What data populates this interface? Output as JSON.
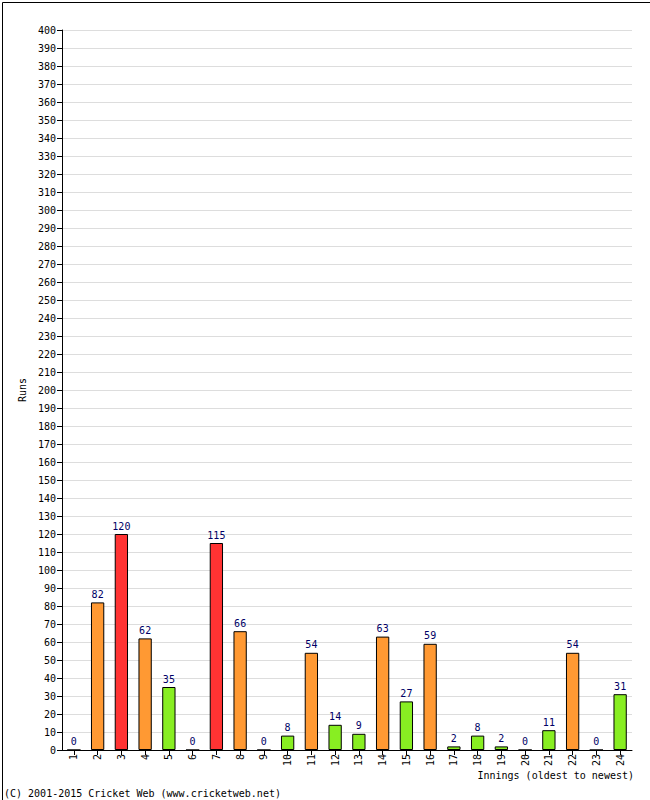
{
  "chart_data": {
    "type": "bar",
    "x_label": "Innings (oldest to newest)",
    "y_label": "Runs",
    "annotations": [
      "(C) 2001-2015 Cricket Web (www.cricketweb.net)"
    ],
    "categories": [
      "1",
      "2",
      "3",
      "4",
      "5",
      "6",
      "7",
      "8",
      "9",
      "10",
      "11",
      "12",
      "13",
      "14",
      "15",
      "16",
      "17",
      "18",
      "19",
      "20",
      "21",
      "22",
      "23",
      "24"
    ],
    "values": [
      0,
      82,
      120,
      62,
      35,
      0,
      115,
      66,
      0,
      8,
      54,
      14,
      9,
      63,
      27,
      59,
      2,
      8,
      2,
      0,
      11,
      54,
      0,
      31
    ],
    "colors": [
      "#88ee22",
      "#ff9933",
      "#ff3333",
      "#ff9933",
      "#88ee22",
      "#88ee22",
      "#ff3333",
      "#ff9933",
      "#88ee22",
      "#88ee22",
      "#ff9933",
      "#88ee22",
      "#88ee22",
      "#ff9933",
      "#88ee22",
      "#ff9933",
      "#88ee22",
      "#88ee22",
      "#88ee22",
      "#88ee22",
      "#88ee22",
      "#ff9933",
      "#88ee22",
      "#88ee22"
    ],
    "ylim": [
      0,
      400
    ],
    "yticks": [
      0,
      10,
      20,
      30,
      40,
      50,
      60,
      70,
      80,
      90,
      100,
      110,
      120,
      130,
      140,
      150,
      160,
      170,
      180,
      190,
      200,
      210,
      220,
      230,
      240,
      250,
      260,
      270,
      280,
      290,
      300,
      310,
      320,
      330,
      340,
      350,
      360,
      370,
      380,
      390,
      400
    ],
    "grid": true,
    "data_labels": true
  }
}
